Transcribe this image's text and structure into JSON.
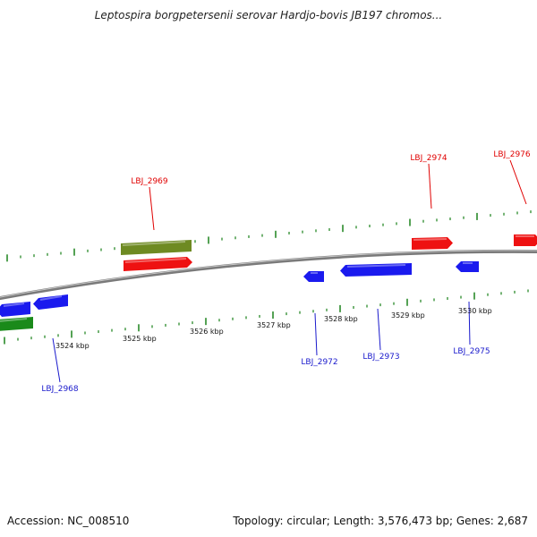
{
  "title": "Leptospira borgpetersenii serovar Hardjo-bovis JB197 chromos...",
  "footer": {
    "accession": "Accession: NC_008510",
    "summary": "Topology: circular; Length: 3,576,473 bp; Genes: 2,687"
  },
  "colors": {
    "backbone": "#7a7a7a",
    "tick": "#2a8a2a",
    "label_forward": "#e00000",
    "label_reverse": "#1a1acc",
    "gene_red": "#ee1111",
    "gene_blue": "#1a1aee",
    "gene_olive": "#6e8a22",
    "gene_green": "#1a8a1a"
  },
  "scale_labels": [
    "3524 kbp",
    "3525 kbp",
    "3526 kbp",
    "3527 kbp",
    "3528 kbp",
    "3529 kbp",
    "3530 kbp"
  ],
  "gene_labels": [
    {
      "id": "LBJ_2969",
      "strand": "forward"
    },
    {
      "id": "LBJ_2974",
      "strand": "forward"
    },
    {
      "id": "LBJ_2976",
      "strand": "forward"
    },
    {
      "id": "LBJ_2968",
      "strand": "reverse"
    },
    {
      "id": "LBJ_2972",
      "strand": "reverse"
    },
    {
      "id": "LBJ_2973",
      "strand": "reverse"
    },
    {
      "id": "LBJ_2975",
      "strand": "reverse"
    }
  ],
  "features": [
    {
      "name": "gene-olive-2969",
      "kind": "olive"
    },
    {
      "name": "gene-red-2969",
      "kind": "red"
    },
    {
      "name": "gene-red-2974",
      "kind": "red"
    },
    {
      "name": "gene-red-2976",
      "kind": "red"
    },
    {
      "name": "gene-blue-2972",
      "kind": "blue"
    },
    {
      "name": "gene-blue-2973",
      "kind": "blue"
    },
    {
      "name": "gene-blue-2975",
      "kind": "blue"
    },
    {
      "name": "gene-blue-2968",
      "kind": "blue"
    },
    {
      "name": "gene-blue-2967",
      "kind": "blue"
    },
    {
      "name": "gene-green-2967",
      "kind": "green"
    }
  ]
}
